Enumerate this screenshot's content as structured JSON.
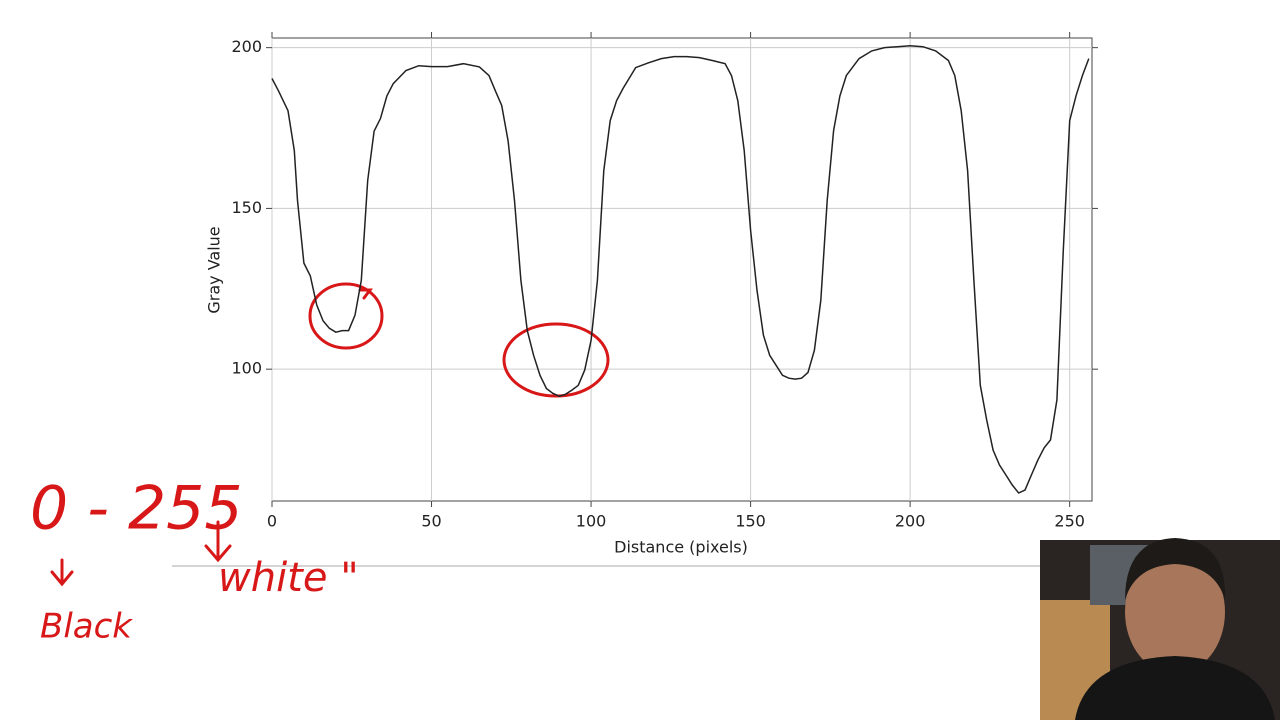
{
  "chart_data": {
    "type": "line",
    "xlabel": "Distance (pixels)",
    "ylabel": "Gray Value",
    "x": [
      0,
      2,
      5,
      7,
      8,
      10,
      12,
      14,
      16,
      18,
      20,
      22,
      24,
      26,
      28,
      30,
      32,
      34,
      36,
      38,
      42,
      46,
      50,
      55,
      60,
      65,
      68,
      70,
      72,
      74,
      76,
      78,
      80,
      82,
      84,
      86,
      88,
      90,
      92,
      94,
      96,
      98,
      100,
      102,
      104,
      106,
      108,
      110,
      114,
      118,
      122,
      126,
      130,
      134,
      138,
      142,
      144,
      146,
      148,
      150,
      152,
      154,
      156,
      158,
      160,
      162,
      164,
      166,
      168,
      170,
      172,
      174,
      176,
      178,
      180,
      184,
      188,
      192,
      196,
      200,
      204,
      208,
      212,
      214,
      216,
      218,
      220,
      222,
      224,
      226,
      228,
      230,
      232,
      234,
      236,
      238,
      240,
      242,
      244,
      246,
      248,
      250,
      252,
      254,
      256
    ],
    "values": [
      190.4,
      186.6,
      180.4,
      168,
      152.5,
      133,
      129,
      120,
      115,
      112.7,
      111.5,
      112,
      112,
      116.8,
      127.6,
      158.7,
      174,
      178,
      185,
      188.8,
      192.9,
      194.4,
      194.1,
      194.1,
      195,
      194,
      191.3,
      186.6,
      182,
      171,
      152.5,
      127.6,
      112,
      104.3,
      98.1,
      94,
      92.5,
      91.6,
      92.2,
      93.5,
      95,
      99.7,
      109,
      127.6,
      161.8,
      177.3,
      183.5,
      187.3,
      193.8,
      195.3,
      196.6,
      197.2,
      197.2,
      196.9,
      196,
      195,
      191.3,
      183.5,
      168,
      143.2,
      124.5,
      110.6,
      104.3,
      101.2,
      98.1,
      97.2,
      96.9,
      97.2,
      99,
      105.9,
      121.4,
      152.5,
      174.2,
      185,
      191.3,
      196.6,
      199,
      200,
      200.3,
      200.6,
      200.3,
      199,
      196,
      191.3,
      180.4,
      161.8,
      127.6,
      95,
      84.2,
      74.8,
      70.2,
      67.1,
      64,
      61.5,
      62.4,
      67.1,
      71.7,
      75.5,
      78,
      90.4,
      137,
      177.3,
      185,
      191.3,
      196.6
    ],
    "color": "#222222",
    "xlim": [
      0,
      257
    ],
    "ylim": [
      59,
      203
    ],
    "xticks": [
      0,
      50,
      100,
      150,
      200,
      250
    ],
    "yticks": [
      100,
      150,
      200
    ],
    "grid": true,
    "annotations": [
      "0 - 255",
      "Black",
      "white \""
    ]
  }
}
